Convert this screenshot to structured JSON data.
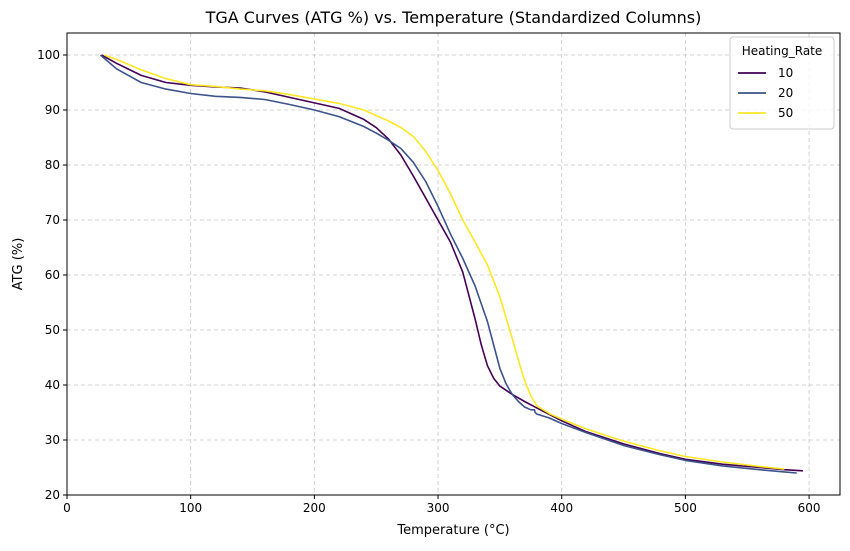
{
  "chart_data": {
    "type": "line",
    "title": "TGA Curves (ATG %) vs. Temperature (Standardized Columns)",
    "xlabel": "Temperature (°C)",
    "ylabel": "ATG (%)",
    "xlim": [
      0,
      625
    ],
    "ylim": [
      20,
      104
    ],
    "xticks": [
      0,
      100,
      200,
      300,
      400,
      500,
      600
    ],
    "yticks": [
      20,
      30,
      40,
      50,
      60,
      70,
      80,
      90,
      100
    ],
    "grid": true,
    "legend": {
      "title": "Heating_Rate",
      "position": "top-right"
    },
    "series": [
      {
        "name": "10",
        "color": "#440154",
        "x": [
          28,
          40,
          60,
          80,
          100,
          120,
          140,
          160,
          180,
          200,
          220,
          240,
          250,
          260,
          270,
          280,
          290,
          300,
          310,
          320,
          330,
          335,
          340,
          345,
          350,
          360,
          370,
          380,
          400,
          420,
          450,
          480,
          500,
          530,
          560,
          580,
          595
        ],
        "y": [
          100,
          98.5,
          96.3,
          95,
          94.5,
          94.2,
          94,
          93.3,
          92.3,
          91.3,
          90.3,
          88.3,
          86.8,
          84.7,
          81.8,
          78,
          74,
          70,
          66,
          60.5,
          52,
          47.3,
          43.5,
          41.2,
          39.8,
          38.3,
          37,
          35.8,
          33.5,
          31.5,
          29.3,
          27.5,
          26.5,
          25.6,
          25,
          24.6,
          24.4
        ]
      },
      {
        "name": "20",
        "color": "#3b528b",
        "x": [
          27,
          40,
          60,
          80,
          100,
          120,
          140,
          160,
          180,
          200,
          220,
          240,
          250,
          260,
          270,
          280,
          290,
          300,
          310,
          320,
          330,
          340,
          350,
          355,
          360,
          365,
          370,
          375,
          378,
          378.5,
          380,
          390,
          400,
          420,
          450,
          480,
          500,
          530,
          560,
          580,
          590
        ],
        "y": [
          100,
          97.5,
          95,
          93.8,
          93,
          92.5,
          92.3,
          91.9,
          91,
          90,
          88.8,
          87,
          85.8,
          84.5,
          83,
          80.5,
          77,
          72.5,
          67.5,
          63,
          58,
          51.5,
          43,
          40.2,
          38.3,
          37,
          36,
          35.5,
          35.5,
          35,
          34.7,
          34,
          33,
          31.3,
          29,
          27.3,
          26.3,
          25.3,
          24.6,
          24.2,
          24
        ]
      },
      {
        "name": "50",
        "color": "#fde725",
        "x": [
          30,
          40,
          60,
          80,
          100,
          120,
          140,
          160,
          180,
          200,
          220,
          240,
          260,
          270,
          280,
          290,
          300,
          310,
          320,
          330,
          340,
          350,
          360,
          365,
          370,
          375,
          380,
          390,
          400,
          420,
          450,
          480,
          500,
          530,
          560,
          580
        ],
        "y": [
          100,
          99.2,
          97.3,
          95.7,
          94.6,
          94.3,
          93.8,
          93.5,
          92.8,
          92,
          91.2,
          90,
          88,
          86.8,
          85.2,
          82.5,
          79,
          74.8,
          70,
          66,
          61.8,
          56,
          48.5,
          44.5,
          40.8,
          38,
          36.2,
          34.8,
          33.8,
          32,
          29.8,
          28,
          27,
          26,
          25.2,
          24.7
        ]
      }
    ]
  }
}
